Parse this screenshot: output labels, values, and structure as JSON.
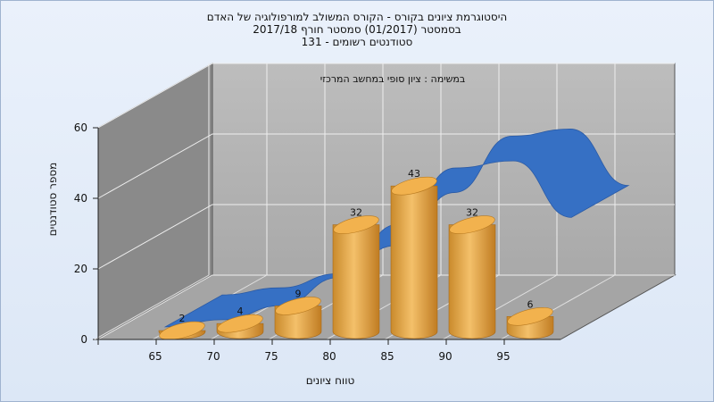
{
  "header": {
    "title_line1": "היסטוגרמת ציונים בקורס - הקורס המשולב למורפולוגיה של האדם",
    "title_line2": "בסמסטר  (01/2017)  סמסטר חורף 2017/18",
    "title_line3": "סטודנטים רשומים - 131"
  },
  "chart_data": {
    "type": "bar",
    "annotation": "במשימה : ציון סופי במחשב המרכזי",
    "xlabel": "טווח ציונים",
    "ylabel": "מספר סטודנטים",
    "categories": [
      "65",
      "70",
      "75",
      "80",
      "85",
      "90",
      "95"
    ],
    "values": [
      2,
      4,
      9,
      32,
      43,
      32,
      6
    ],
    "data_labels": [
      "2",
      "4",
      "9",
      "32",
      "43",
      "32",
      "6"
    ],
    "ylim": [
      0,
      60
    ],
    "yticks": [
      "0",
      "20",
      "40",
      "60"
    ],
    "grid": true,
    "three_d": true,
    "bar_color": "#e6a33e",
    "curve": {
      "type": "normal-distribution",
      "color": "#3670c4",
      "x": [
        65,
        70,
        75,
        80,
        85,
        90,
        95,
        100
      ],
      "y": [
        2,
        4,
        8,
        16,
        31,
        47,
        49,
        33
      ]
    },
    "wall_color": "#b7b7b7",
    "side_wall_color": "#8a8a8a",
    "floor_color": "#a5a5a5"
  }
}
